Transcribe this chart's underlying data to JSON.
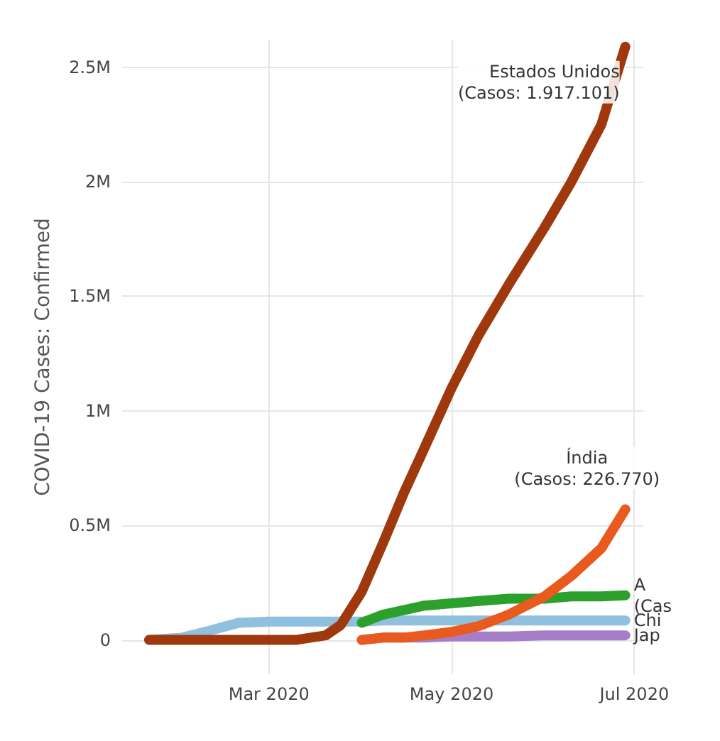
{
  "chart_data": {
    "type": "line",
    "ylabel": "COVID-19 Cases: Confirmed",
    "x": [
      "2020-01-21",
      "2020-02-01",
      "2020-02-10",
      "2020-02-20",
      "2020-03-01",
      "2020-03-10",
      "2020-03-20",
      "2020-03-25",
      "2020-04-01",
      "2020-04-08",
      "2020-04-15",
      "2020-04-22",
      "2020-05-01",
      "2020-05-10",
      "2020-05-20",
      "2020-06-01",
      "2020-06-10",
      "2020-06-20",
      "2020-06-28"
    ],
    "series": [
      {
        "name": "Estados Unidos\n(Casos: 1.917.101)",
        "color": "#a0380e",
        "values": [
          0,
          0,
          0,
          0,
          0,
          0,
          20000,
          65000,
          210000,
          420000,
          640000,
          840000,
          1100000,
          1330000,
          1550000,
          1800000,
          2000000,
          2250000,
          2590000
        ]
      },
      {
        "name": "Índia\n(Casos: 226.770)",
        "color": "#e85a1e",
        "values": [
          null,
          null,
          null,
          null,
          null,
          null,
          null,
          null,
          0,
          10000,
          10000,
          20000,
          35000,
          60000,
          110000,
          190000,
          280000,
          400000,
          570000
        ]
      },
      {
        "name": "A\n(Cas",
        "color": "#2ca02c",
        "values": [
          null,
          null,
          null,
          null,
          null,
          null,
          null,
          null,
          75000,
          110000,
          130000,
          150000,
          160000,
          170000,
          180000,
          180000,
          190000,
          190000,
          195000
        ]
      },
      {
        "name": "Chi",
        "color": "#8fc0dd",
        "values": [
          0,
          10000,
          40000,
          75000,
          80000,
          80000,
          80000,
          80000,
          80000,
          85000,
          85000,
          85000,
          85000,
          85000,
          85000,
          85000,
          85000,
          85000,
          85000
        ]
      },
      {
        "name": "Jap",
        "color": "#a67dc9",
        "values": [
          null,
          null,
          null,
          null,
          null,
          null,
          null,
          null,
          0,
          10000,
          10000,
          10000,
          15000,
          15000,
          15000,
          20000,
          20000,
          20000,
          20000
        ]
      }
    ],
    "xlim": [
      "2020-01-12",
      "2020-07-04"
    ],
    "xticks": [
      {
        "value": "2020-03-01",
        "label": "Mar 2020"
      },
      {
        "value": "2020-05-01",
        "label": "May 2020"
      },
      {
        "value": "2020-07-01",
        "label": "Jul 2020"
      }
    ],
    "ylim": [
      -150000,
      2620000
    ],
    "yticks": [
      0,
      {
        "value": 500000,
        "label": "0.5M"
      },
      {
        "value": 1000000,
        "label": "1M"
      },
      {
        "value": 1500000,
        "label": "1.5M"
      },
      {
        "value": 2000000,
        "label": "2M"
      },
      {
        "value": 2500000,
        "label": "2.5M"
      }
    ],
    "grid": true,
    "marker": "none",
    "line_style": "solid"
  }
}
